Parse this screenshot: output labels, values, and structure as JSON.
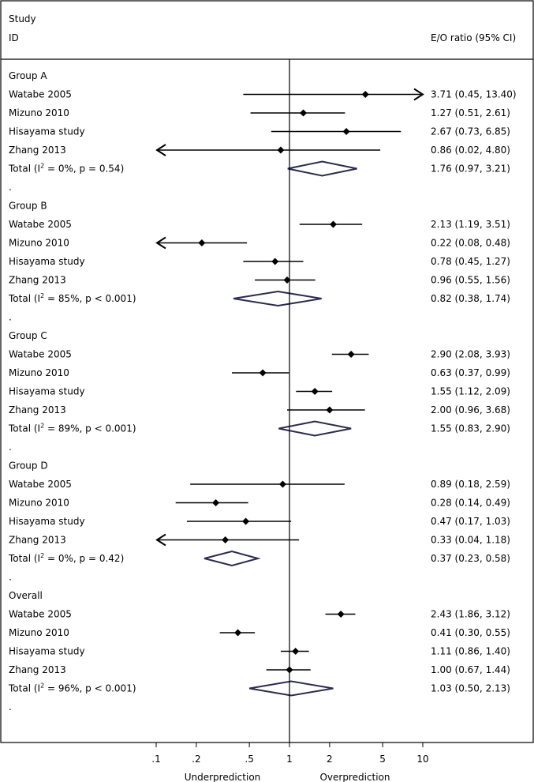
{
  "header": {
    "study_label": "Study",
    "id_label": "ID",
    "ratio_label": "E/O ratio (95% CI)"
  },
  "chart_data": {
    "type": "forest",
    "scale": "log",
    "xlim": [
      0.1,
      10
    ],
    "reference_line": 1,
    "ticks": [
      {
        "value": 0.1,
        "label": ".1"
      },
      {
        "value": 0.2,
        "label": ".2"
      },
      {
        "value": 0.5,
        "label": ".5"
      },
      {
        "value": 1,
        "label": "1"
      },
      {
        "value": 2,
        "label": "2"
      },
      {
        "value": 5,
        "label": "5"
      },
      {
        "value": 10,
        "label": "10"
      }
    ],
    "xlabel_left": "Underprediction",
    "xlabel_right": "Overprediction",
    "groups": [
      {
        "title": "Group A",
        "studies": [
          {
            "name": "Watabe 2005",
            "est": 3.71,
            "lo": 0.45,
            "hi": 13.4,
            "ci_text": "3.71 (0.45, 13.40)"
          },
          {
            "name": "Mizuno 2010",
            "est": 1.27,
            "lo": 0.51,
            "hi": 2.61,
            "ci_text": "1.27 (0.51, 2.61)"
          },
          {
            "name": "Hisayama study",
            "est": 2.67,
            "lo": 0.73,
            "hi": 6.85,
            "ci_text": "2.67 (0.73, 6.85)"
          },
          {
            "name": "Zhang 2013",
            "est": 0.86,
            "lo": 0.02,
            "hi": 4.8,
            "ci_text": "0.86 (0.02, 4.80)"
          }
        ],
        "total": {
          "label": "Total",
          "i2": "0%",
          "p": "p = 0.54",
          "est": 1.76,
          "lo": 0.97,
          "hi": 3.21,
          "ci_text": "1.76 (0.97, 3.21)"
        }
      },
      {
        "title": "Group B",
        "studies": [
          {
            "name": "Watabe 2005",
            "est": 2.13,
            "lo": 1.19,
            "hi": 3.51,
            "ci_text": "2.13 (1.19, 3.51)"
          },
          {
            "name": "Mizuno 2010",
            "est": 0.22,
            "lo": 0.08,
            "hi": 0.48,
            "ci_text": "0.22 (0.08, 0.48)"
          },
          {
            "name": "Hisayama study",
            "est": 0.78,
            "lo": 0.45,
            "hi": 1.27,
            "ci_text": "0.78 (0.45, 1.27)"
          },
          {
            "name": "Zhang 2013",
            "est": 0.96,
            "lo": 0.55,
            "hi": 1.56,
            "ci_text": "0.96 (0.55, 1.56)"
          }
        ],
        "total": {
          "label": "Total",
          "i2": "85%",
          "p": "p < 0.001",
          "est": 0.82,
          "lo": 0.38,
          "hi": 1.74,
          "ci_text": "0.82 (0.38, 1.74)"
        }
      },
      {
        "title": "Group C",
        "studies": [
          {
            "name": "Watabe 2005",
            "est": 2.9,
            "lo": 2.08,
            "hi": 3.93,
            "ci_text": "2.90 (2.08, 3.93)"
          },
          {
            "name": "Mizuno 2010",
            "est": 0.63,
            "lo": 0.37,
            "hi": 0.99,
            "ci_text": "0.63 (0.37, 0.99)"
          },
          {
            "name": "Hisayama study",
            "est": 1.55,
            "lo": 1.12,
            "hi": 2.09,
            "ci_text": "1.55 (1.12, 2.09)"
          },
          {
            "name": "Zhang 2013",
            "est": 2.0,
            "lo": 0.96,
            "hi": 3.68,
            "ci_text": "2.00 (0.96, 3.68)"
          }
        ],
        "total": {
          "label": "Total",
          "i2": "89%",
          "p": "p < 0.001",
          "est": 1.55,
          "lo": 0.83,
          "hi": 2.9,
          "ci_text": "1.55 (0.83, 2.90)"
        }
      },
      {
        "title": "Group D",
        "studies": [
          {
            "name": "Watabe 2005",
            "est": 0.89,
            "lo": 0.18,
            "hi": 2.59,
            "ci_text": "0.89 (0.18, 2.59)"
          },
          {
            "name": "Mizuno 2010",
            "est": 0.28,
            "lo": 0.14,
            "hi": 0.49,
            "ci_text": "0.28 (0.14, 0.49)"
          },
          {
            "name": "Hisayama study",
            "est": 0.47,
            "lo": 0.17,
            "hi": 1.03,
            "ci_text": "0.47 (0.17, 1.03)"
          },
          {
            "name": "Zhang 2013",
            "est": 0.33,
            "lo": 0.04,
            "hi": 1.18,
            "ci_text": "0.33 (0.04, 1.18)"
          }
        ],
        "total": {
          "label": "Total",
          "i2": "0%",
          "p": "p = 0.42",
          "est": 0.37,
          "lo": 0.23,
          "hi": 0.58,
          "ci_text": "0.37 (0.23, 0.58)"
        }
      },
      {
        "title": "Overall",
        "studies": [
          {
            "name": "Watabe 2005",
            "est": 2.43,
            "lo": 1.86,
            "hi": 3.12,
            "ci_text": "2.43 (1.86, 3.12)"
          },
          {
            "name": "Mizuno 2010",
            "est": 0.41,
            "lo": 0.3,
            "hi": 0.55,
            "ci_text": "0.41 (0.30, 0.55)"
          },
          {
            "name": "Hisayama study",
            "est": 1.11,
            "lo": 0.86,
            "hi": 1.4,
            "ci_text": "1.11 (0.86, 1.40)"
          },
          {
            "name": "Zhang 2013",
            "est": 1.0,
            "lo": 0.67,
            "hi": 1.44,
            "ci_text": "1.00 (0.67, 1.44)"
          }
        ],
        "total": {
          "label": "Total",
          "i2": "96%",
          "p": "p < 0.001",
          "est": 1.03,
          "lo": 0.5,
          "hi": 2.13,
          "ci_text": "1.03 (0.50, 2.13)"
        }
      }
    ],
    "spacer_text": ".",
    "colors": {
      "line": "#000000",
      "diamond": "#2b2b4f"
    }
  }
}
